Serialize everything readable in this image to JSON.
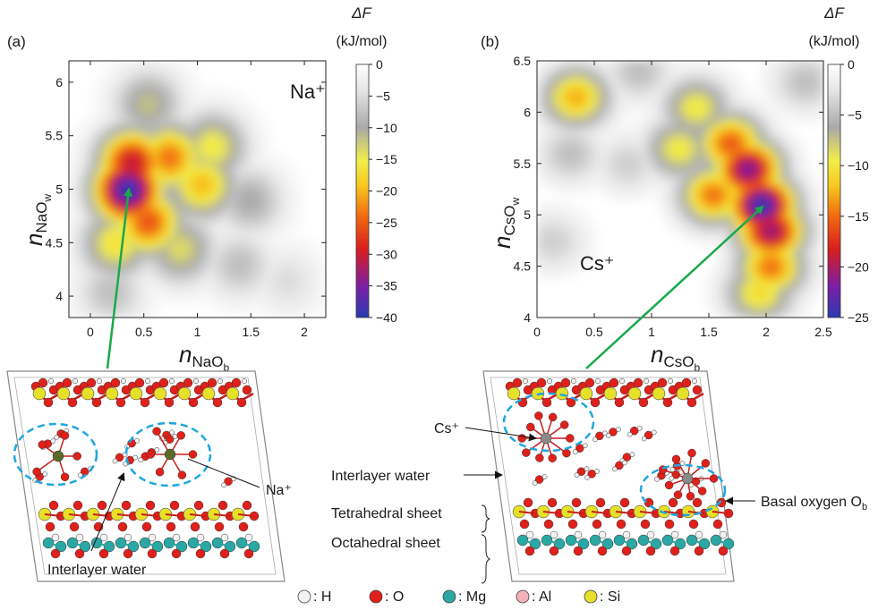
{
  "legend": {
    "items": [
      {
        "symbol": "H",
        "label": "○: H",
        "color": "#f2f2f2"
      },
      {
        "symbol": "O",
        "label": "●: O",
        "color": "#e0201a"
      },
      {
        "symbol": "Mg",
        "label": "●: Mg",
        "color": "#2ba7a4"
      },
      {
        "symbol": "Al",
        "label": "●: Al",
        "color": "#f2b3b8"
      },
      {
        "symbol": "Si",
        "label": "●: Si",
        "color": "#e6e02a"
      }
    ]
  },
  "colormap": [
    "#2a3ab0",
    "#7a1fa8",
    "#d81e1e",
    "#f26a10",
    "#f7c81e",
    "#f2ee4a",
    "#a9a9a9",
    "#e6e6e6",
    "#ffffff"
  ],
  "chart_data": [
    {
      "type": "heatmap",
      "panel_label": "(a)",
      "ion_label": "Na⁺",
      "xlabel": "n",
      "xlabel_sub": "NaO",
      "xlabel_subsub": "b",
      "ylabel": "n",
      "ylabel_sub": "NaO",
      "ylabel_subsub": "w",
      "xlim": [
        -0.2,
        2.2
      ],
      "ylim": [
        3.8,
        6.2
      ],
      "xticks": [
        0,
        0.5,
        1,
        1.5,
        2
      ],
      "yticks": [
        4,
        4.5,
        5,
        5.5,
        6
      ],
      "colorbar": {
        "title": "ΔF",
        "unit": "(kJ/mol)",
        "min": -40,
        "max": 0,
        "ticks": [
          0,
          -5,
          -10,
          -15,
          -20,
          -25,
          -30,
          -35,
          -40
        ]
      },
      "minimum": [
        0.36,
        5.0
      ],
      "basins": [
        {
          "x": 0.36,
          "y": 5.0,
          "depth": -40
        },
        {
          "x": 0.4,
          "y": 5.25,
          "depth": -31
        },
        {
          "x": 0.75,
          "y": 5.3,
          "depth": -24
        },
        {
          "x": 0.55,
          "y": 4.7,
          "depth": -26
        },
        {
          "x": 1.05,
          "y": 5.05,
          "depth": -20
        },
        {
          "x": 1.15,
          "y": 5.4,
          "depth": -16
        },
        {
          "x": 0.25,
          "y": 4.5,
          "depth": -17
        },
        {
          "x": 0.85,
          "y": 4.45,
          "depth": -14
        },
        {
          "x": 1.5,
          "y": 4.9,
          "depth": -10
        },
        {
          "x": 1.4,
          "y": 4.3,
          "depth": -8
        },
        {
          "x": 0.55,
          "y": 5.8,
          "depth": -12
        },
        {
          "x": 0.2,
          "y": 4.05,
          "depth": -8
        },
        {
          "x": 1.85,
          "y": 4.15,
          "depth": -5
        }
      ]
    },
    {
      "type": "heatmap",
      "panel_label": "(b)",
      "ion_label": "Cs⁺",
      "xlabel": "n",
      "xlabel_sub": "CsO",
      "xlabel_subsub": "b",
      "ylabel": "n",
      "ylabel_sub": "CsO",
      "ylabel_subsub": "w",
      "xlim": [
        0,
        2.5
      ],
      "ylim": [
        4,
        6.5
      ],
      "xticks": [
        0,
        0.5,
        1,
        1.5,
        2,
        2.5
      ],
      "yticks": [
        4,
        4.5,
        5,
        5.5,
        6,
        6.5
      ],
      "colorbar": {
        "title": "ΔF",
        "unit": "(kJ/mol)",
        "min": -25,
        "max": 0,
        "ticks": [
          0,
          -5,
          -10,
          -15,
          -20,
          -25
        ]
      },
      "minimum": [
        1.97,
        5.08
      ],
      "basins": [
        {
          "x": 1.97,
          "y": 5.1,
          "depth": -25
        },
        {
          "x": 1.85,
          "y": 5.45,
          "depth": -22
        },
        {
          "x": 2.05,
          "y": 4.85,
          "depth": -21
        },
        {
          "x": 1.7,
          "y": 5.7,
          "depth": -16
        },
        {
          "x": 1.55,
          "y": 5.2,
          "depth": -15
        },
        {
          "x": 2.05,
          "y": 4.5,
          "depth": -15
        },
        {
          "x": 1.95,
          "y": 4.25,
          "depth": -11
        },
        {
          "x": 1.25,
          "y": 5.65,
          "depth": -10
        },
        {
          "x": 1.4,
          "y": 6.05,
          "depth": -10
        },
        {
          "x": 0.35,
          "y": 6.15,
          "depth": -13
        },
        {
          "x": 0.3,
          "y": 5.6,
          "depth": -5
        },
        {
          "x": 0.8,
          "y": 5.5,
          "depth": -4
        },
        {
          "x": 0.15,
          "y": 4.75,
          "depth": -4
        },
        {
          "x": 0.9,
          "y": 6.4,
          "depth": -5
        },
        {
          "x": 2.35,
          "y": 6.3,
          "depth": -5
        }
      ]
    }
  ],
  "panel_a_structure": {
    "ion": "Na",
    "ion_label": "Na⁺",
    "water_label": "Interlayer water"
  },
  "panel_b_structure": {
    "ion": "Cs",
    "ion_label": "Cs⁺",
    "water_label": "Interlayer water",
    "tetrahedral_label": "Tetrahedral sheet",
    "octahedral_label": "Octahedral sheet",
    "basal_label": "Basal oxygen O",
    "basal_sub": "b"
  }
}
